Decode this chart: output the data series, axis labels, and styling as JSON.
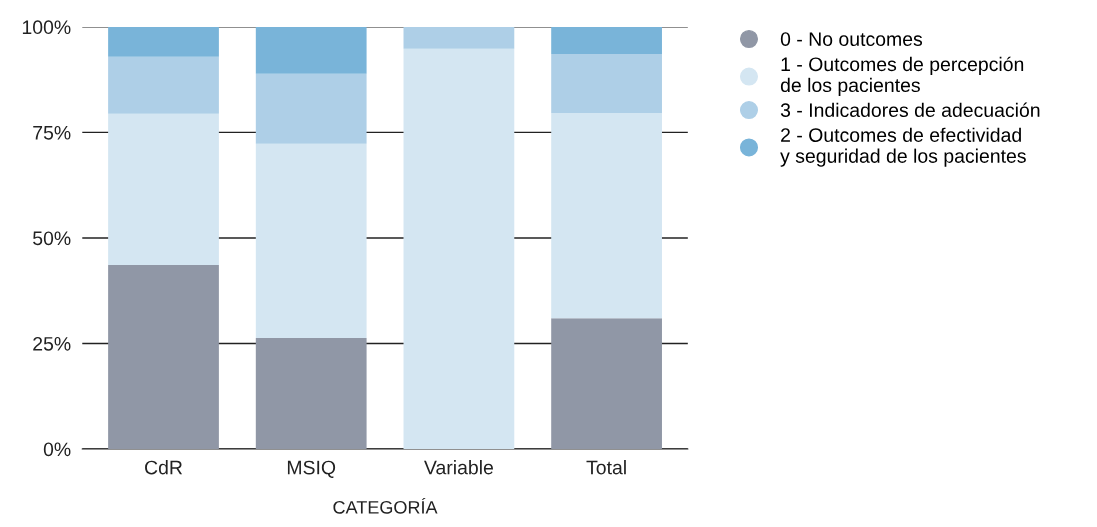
{
  "chart_data": {
    "type": "bar",
    "stacked": true,
    "xlabel": "CATEGORÍA",
    "categories": [
      "CdR",
      "MSIQ",
      "Variable",
      "Total"
    ],
    "series": [
      {
        "name": "0 - No outcomes",
        "color": "#9097a6",
        "values": [
          43.6,
          26.3,
          0,
          31.0
        ]
      },
      {
        "name": "1 - Outcomes de percepción\nde los pacientes",
        "color": "#d4e6f2",
        "values": [
          35.8,
          46.0,
          94.8,
          48.6
        ]
      },
      {
        "name": "3 - Indicadores de adecuación",
        "color": "#aecfe7",
        "values": [
          13.5,
          16.6,
          5.2,
          14.0
        ]
      },
      {
        "name": "2 - Outcomes de efectividad\ny seguridad de los pacientes",
        "color": "#79b4d9",
        "values": [
          7.1,
          11.1,
          0,
          6.4
        ]
      }
    ],
    "ylim": [
      0,
      100
    ],
    "yticks": [
      {
        "value": 0,
        "label": "0%"
      },
      {
        "value": 25,
        "label": "25%"
      },
      {
        "value": 50,
        "label": "50%"
      },
      {
        "value": 75,
        "label": "75%"
      },
      {
        "value": 100,
        "label": "100%"
      }
    ],
    "grid": "y",
    "legend": "right"
  }
}
